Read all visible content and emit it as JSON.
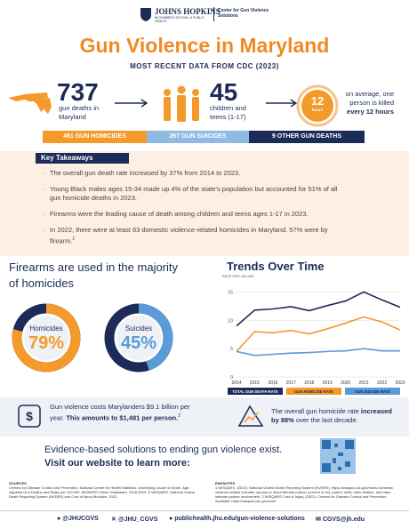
{
  "header": {
    "logo_line1": "JOHNS HOPKINS",
    "logo_line2": "BLOOMBERG SCHOOL of PUBLIC HEALTH",
    "center": "Center for Gun Violence Solutions"
  },
  "title": "Gun Violence in Maryland",
  "subtitle": "MOST RECENT DATA FROM CDC (2023)",
  "stats": [
    {
      "value": "737",
      "label": "gun deaths in Maryland"
    },
    {
      "value": "45",
      "label": "children and teens (1-17)"
    },
    {
      "value": "12",
      "unit": "hours",
      "label": "on average, one person is killed",
      "emphasis": "every 12 hours"
    }
  ],
  "breakdown": [
    {
      "label": "461 GUN HOMICIDES",
      "color": "#f39a2b"
    },
    {
      "label": "267 GUN SUICIDES",
      "color": "#8fbbe3"
    },
    {
      "label": "9 OTHER GUN DEATHS",
      "color": "#1c2b58"
    }
  ],
  "takeaways": {
    "title": "Key Takeaways",
    "items": [
      {
        "text": "The overall gun death rate increased by 37% from 2014 to 2023."
      },
      {
        "text": "Young Black males ages 15-34 made up 4% of the state's population but accounted for 51% of all gun homicide deaths in 2023."
      },
      {
        "text": "Firearms were the leading cause of death among children and teens ages 1-17 in 2023."
      },
      {
        "text": "In 2022, there were at least 63 domestic violence-related homicides in Maryland. 57% were by firearm.",
        "note": "1"
      }
    ]
  },
  "majority": {
    "title": "Firearms are used in the majority of homicides",
    "donuts": [
      {
        "name": "Homicides",
        "value": 79,
        "label": "79%",
        "color": "#f39a2b"
      },
      {
        "name": "Suicides",
        "value": 45,
        "label": "45%",
        "color": "#5a9bd8"
      }
    ]
  },
  "trends": {
    "title": "Trends Over Time",
    "y_label": "RATE PER 100,000",
    "x": [
      2014,
      2015,
      2016,
      2017,
      2018,
      2019,
      2020,
      2021,
      2022,
      2023
    ],
    "xlim": [
      2014,
      2023
    ],
    "ylim": [
      0,
      16
    ],
    "yticks": [
      0,
      5,
      10,
      15
    ],
    "grid": true,
    "series": [
      {
        "name": "TOTAL GUN DEATH RATE",
        "color": "#1c2b58",
        "values": [
          9.0,
          11.8,
          12.0,
          12.4,
          11.7,
          12.6,
          13.4,
          15.0,
          13.6,
          12.3
        ]
      },
      {
        "name": "GUN HOMICIDE RATE",
        "color": "#f39a2b",
        "values": [
          4.5,
          8.0,
          7.8,
          8.2,
          7.6,
          8.5,
          9.5,
          10.6,
          9.7,
          8.3
        ]
      },
      {
        "name": "GUN SUICIDE RATE",
        "color": "#5a9bd8",
        "values": [
          4.5,
          3.8,
          4.0,
          4.2,
          4.3,
          4.5,
          4.6,
          5.0,
          4.6,
          4.6
        ]
      }
    ]
  },
  "callouts": [
    {
      "text": "Gun violence costs Marylanders $9.1 billion per year. ",
      "bold": "This amounts to $1,481 per person.",
      "note": "2"
    },
    {
      "text": "The overall gun homicide rate ",
      "bold": "increased by 88%",
      "after": " over the last decade."
    }
  ],
  "cta": {
    "line1": "Evidence-based solutions to ending gun violence exist.",
    "line2": "Visit our website to learn more:"
  },
  "sources": {
    "title": "SOURCES",
    "text": "Centers for Disease Control and Prevention, National Center for Health Statistics. Underlying Cause of Death. Age-adjusted Gun Deaths and Rates per 100,000. WONDER Online Databases. 2018-2023. & WISQARS. National Violent Death Reporting System (NVDRS) and Cost of Injury Modules. 2022."
  },
  "endnotes": {
    "title": "ENDNOTES",
    "text": "1 WISQARS. (2022). National Violent Death Reporting System (NVDRS). https://wisqars.cdc.gov/nvdrs Domestic violence-related includes: spouse or other intimate partner (current or ex), parent, child, other relative, and other intimate partner involvement. 2 WISQARS Cost of Injury. (2022). Centers for Disease Control and Prevention. Available: https://wisqars.cdc.gov/cost/"
  },
  "footer": [
    "@JHUCGVS",
    "@JHU_CGVS",
    "publichealth.jhu.edu/gun-violence-solutions",
    "CGVS@jh.edu"
  ]
}
